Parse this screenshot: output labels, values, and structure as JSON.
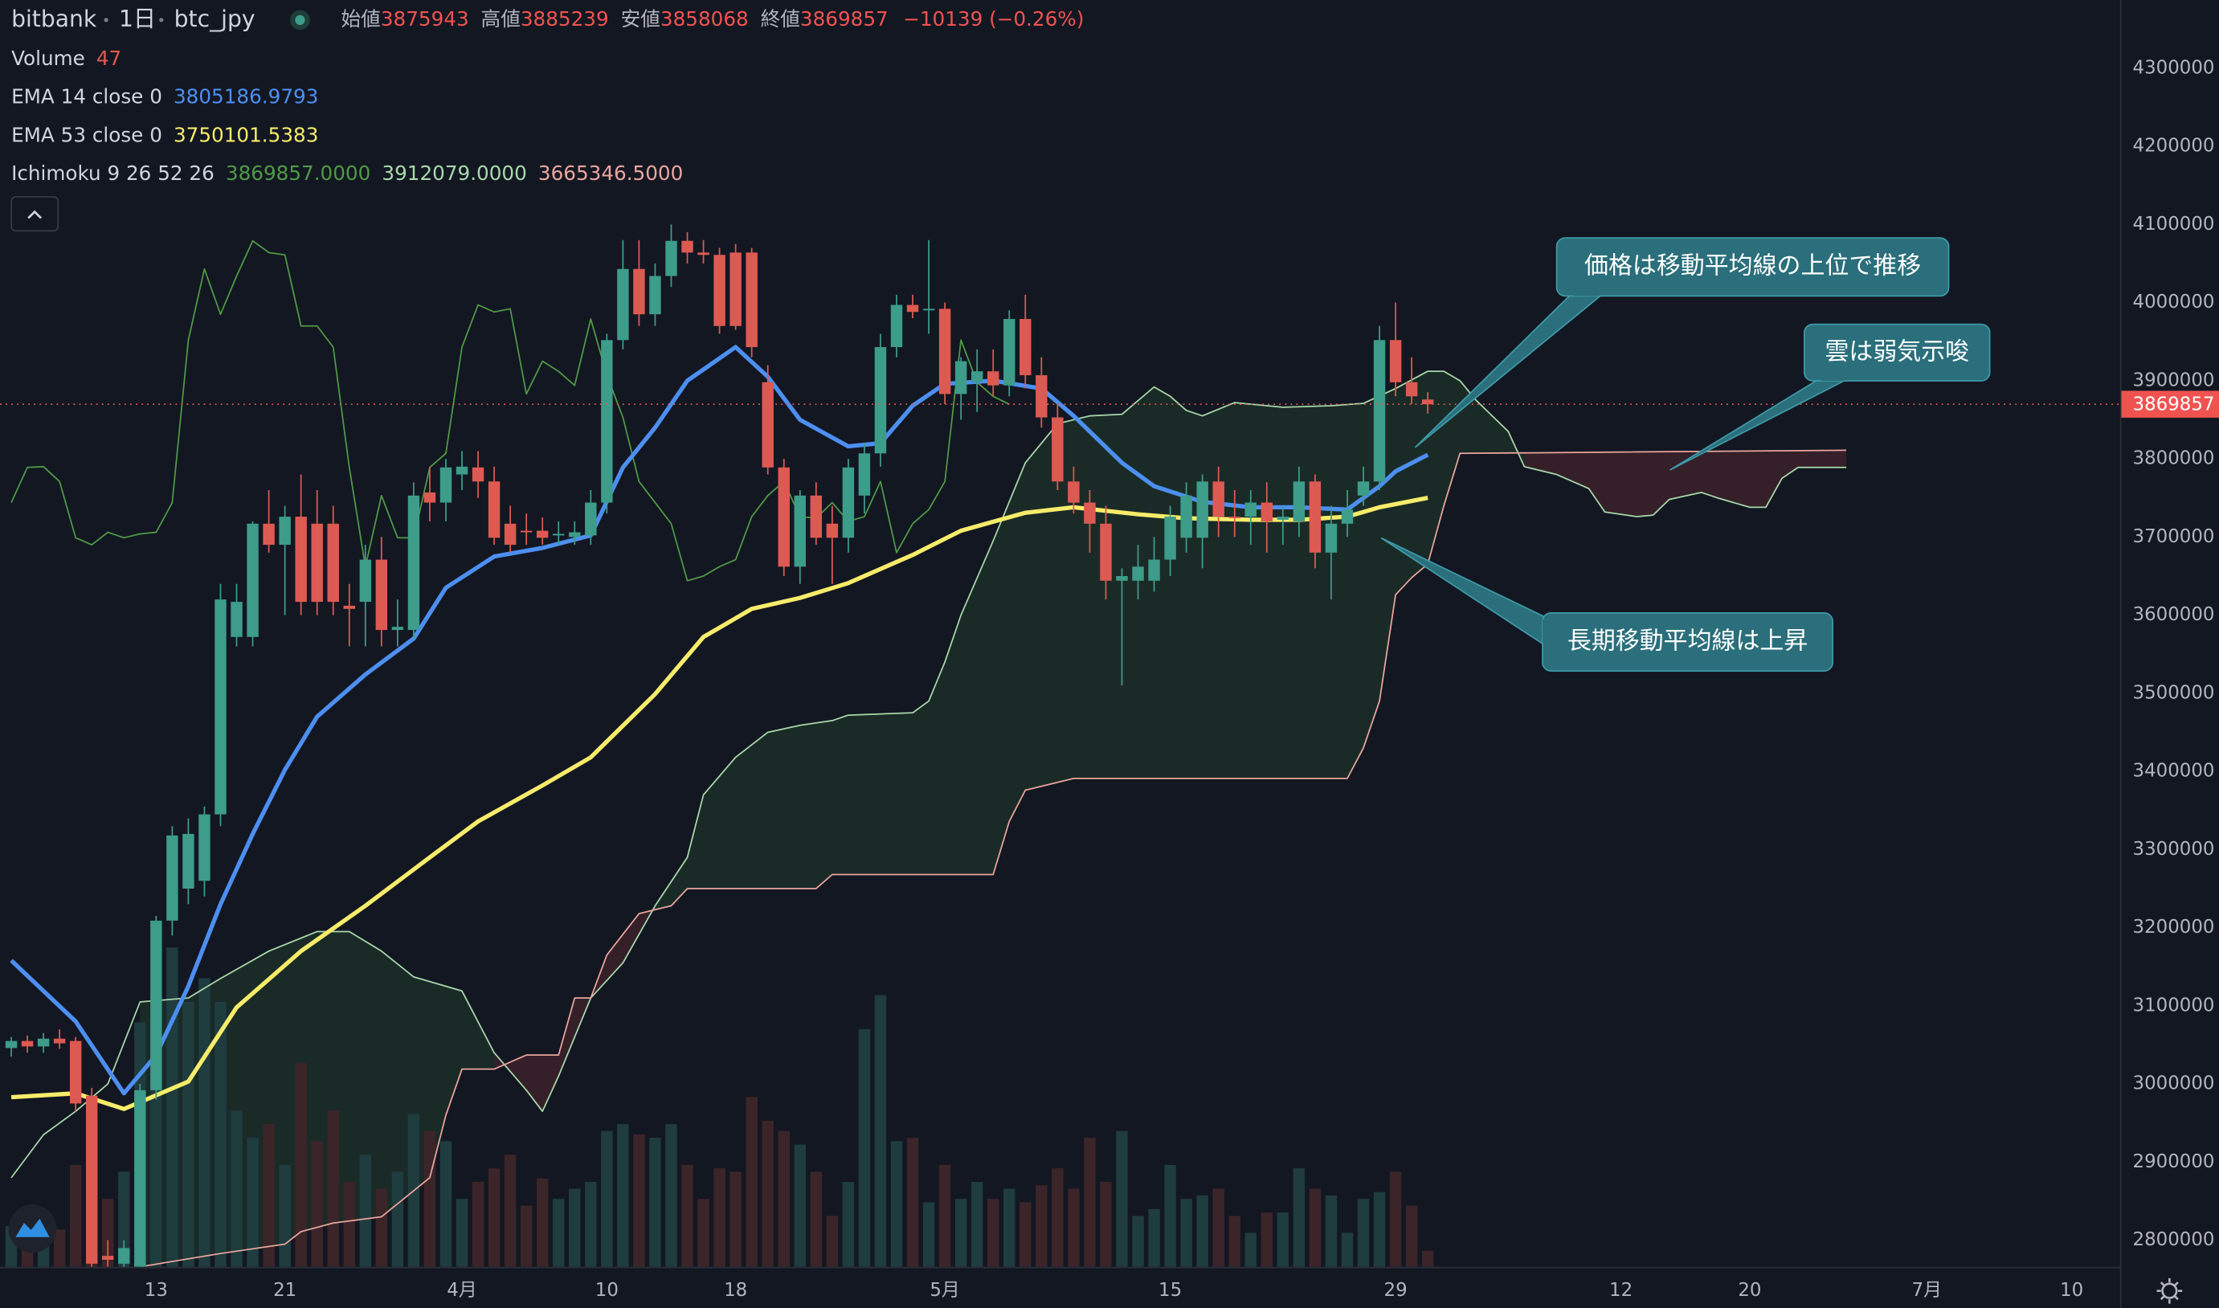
{
  "chart_data": {
    "type": "candlestick",
    "title": "bitbank",
    "interval": "1日",
    "symbol": "btc_jpy",
    "ohlc_labels": [
      "始値",
      "高値",
      "安値",
      "終値"
    ],
    "change": "−10139 (−0.26%)",
    "xlim": [
      -0.7,
      131
    ],
    "xticks": [
      {
        "value": 9,
        "label": "13"
      },
      {
        "value": 17,
        "label": "21"
      },
      {
        "value": 28,
        "label": "4月"
      },
      {
        "value": 37,
        "label": "10"
      },
      {
        "value": 45,
        "label": "18"
      },
      {
        "value": 58,
        "label": "5月"
      },
      {
        "value": 72,
        "label": "15"
      },
      {
        "value": 86,
        "label": "29"
      },
      {
        "value": 100,
        "label": "12"
      },
      {
        "value": 108,
        "label": "20"
      },
      {
        "value": 119,
        "label": "7月"
      },
      {
        "value": 128,
        "label": "10"
      }
    ],
    "ylim": [
      2766000,
      4387000
    ],
    "yticks": [
      2800000,
      2900000,
      3000000,
      3100000,
      3200000,
      3300000,
      3400000,
      3500000,
      3600000,
      3700000,
      3800000,
      3900000,
      4000000,
      4100000,
      4200000,
      4300000
    ],
    "grid": false,
    "candles": {
      "up_color": "#3d9c8a",
      "down_color": "#dd5a52",
      "open": [
        3046000,
        3055000,
        3048000,
        3058000,
        3055000,
        2985000,
        2780000,
        2770000,
        2766000,
        2992000,
        3209000,
        3250000,
        3260000,
        3345000,
        3572000,
        3572000,
        3717000,
        3690000,
        3726000,
        3717000,
        3717000,
        3612000,
        3617000,
        3671000,
        3581000,
        3581000,
        3757000,
        3744000,
        3780000,
        3789000,
        3771000,
        3717000,
        3708000,
        3708000,
        3702000,
        3700000,
        3702000,
        3744000,
        3952000,
        4043000,
        3985000,
        4034000,
        4079000,
        4064000,
        4061000,
        4064000,
        4064000,
        3898000,
        3789000,
        3662000,
        3753000,
        3717000,
        3699000,
        3753000,
        3807000,
        3943000,
        3997000,
        3990000,
        3992000,
        3883000,
        3898000,
        3912000,
        3894000,
        3979000,
        3907000,
        3853000,
        3771000,
        3744000,
        3717000,
        3644000,
        3644000,
        3644000,
        3671000,
        3699000,
        3699000,
        3771000,
        3726000,
        3726000,
        3744000,
        3722000,
        3720000,
        3771000,
        3680000,
        3717000,
        3753000,
        3771000,
        3952000,
        3898000,
        3875943
      ],
      "high": [
        3060000,
        3062000,
        3065000,
        3070000,
        3060000,
        2995000,
        2800000,
        2800000,
        3000000,
        3215000,
        3330000,
        3340000,
        3355000,
        3640000,
        3640000,
        3720000,
        3760000,
        3740000,
        3780000,
        3760000,
        3740000,
        3640000,
        3690000,
        3700000,
        3620000,
        3770000,
        3790000,
        3800000,
        3810000,
        3810000,
        3790000,
        3740000,
        3730000,
        3725000,
        3720000,
        3720000,
        3760000,
        3960000,
        4080000,
        4080000,
        4050000,
        4100000,
        4090000,
        4080000,
        4070000,
        4075000,
        4070000,
        3920000,
        3800000,
        3760000,
        3770000,
        3740000,
        3800000,
        3820000,
        3960000,
        4010000,
        4010000,
        4080000,
        4000000,
        3930000,
        3940000,
        3940000,
        3990000,
        4010000,
        3930000,
        3870000,
        3790000,
        3760000,
        3740000,
        3660000,
        3690000,
        3700000,
        3740000,
        3770000,
        3780000,
        3790000,
        3760000,
        3760000,
        3770000,
        3740000,
        3790000,
        3780000,
        3740000,
        3760000,
        3790000,
        3970000,
        4000000,
        3930000,
        3885239
      ],
      "low": [
        3035000,
        3040000,
        3040000,
        3045000,
        2965000,
        2760000,
        2760000,
        2755000,
        2760000,
        2980000,
        3190000,
        3230000,
        3240000,
        3330000,
        3560000,
        3560000,
        3680000,
        3600000,
        3600000,
        3600000,
        3600000,
        3560000,
        3560000,
        3560000,
        3560000,
        3570000,
        3720000,
        3720000,
        3760000,
        3750000,
        3690000,
        3680000,
        3690000,
        3690000,
        3690000,
        3690000,
        3690000,
        3730000,
        3940000,
        3970000,
        3970000,
        4020000,
        4050000,
        4050000,
        3960000,
        3965000,
        3930000,
        3780000,
        3650000,
        3640000,
        3690000,
        3640000,
        3680000,
        3730000,
        3790000,
        3930000,
        3980000,
        3960000,
        3870000,
        3850000,
        3860000,
        3880000,
        3880000,
        3890000,
        3840000,
        3760000,
        3730000,
        3680000,
        3620000,
        3510000,
        3620000,
        3630000,
        3650000,
        3680000,
        3660000,
        3700000,
        3700000,
        3690000,
        3680000,
        3690000,
        3700000,
        3660000,
        3620000,
        3700000,
        3740000,
        3760000,
        3880000,
        3870000,
        3858068
      ],
      "close": [
        3055000,
        3048000,
        3058000,
        3052000,
        2975000,
        2770000,
        2775000,
        2790000,
        2992000,
        3209000,
        3318000,
        3320000,
        3345000,
        3620000,
        3617000,
        3717000,
        3690000,
        3726000,
        3617000,
        3617000,
        3617000,
        3608000,
        3671000,
        3581000,
        3585000,
        3753000,
        3744000,
        3789000,
        3790000,
        3771000,
        3699000,
        3690000,
        3706000,
        3699000,
        3704000,
        3706000,
        3744000,
        3952000,
        4043000,
        3985000,
        4034000,
        4079000,
        4064000,
        4061000,
        3970000,
        3970000,
        3943000,
        3789000,
        3662000,
        3753000,
        3699000,
        3699000,
        3789000,
        3807000,
        3943000,
        3997000,
        3988000,
        3992000,
        3883000,
        3925000,
        3912000,
        3894000,
        3979000,
        3907000,
        3853000,
        3771000,
        3744000,
        3717000,
        3644000,
        3650000,
        3662000,
        3671000,
        3726000,
        3753000,
        3771000,
        3726000,
        3724000,
        3744000,
        3720000,
        3726000,
        3771000,
        3680000,
        3717000,
        3735000,
        3771000,
        3952000,
        3898000,
        3880000,
        3869857
      ]
    },
    "volume": {
      "name": "Volume",
      "up_color": "#1f3c3f",
      "down_color": "#3b2529",
      "vlim": [
        0,
        1000
      ],
      "values": [
        120,
        90,
        100,
        110,
        300,
        420,
        200,
        280,
        720,
        800,
        940,
        780,
        850,
        780,
        460,
        380,
        420,
        300,
        600,
        370,
        460,
        250,
        330,
        230,
        280,
        450,
        400,
        370,
        200,
        250,
        290,
        330,
        180,
        260,
        200,
        230,
        250,
        400,
        420,
        390,
        380,
        420,
        300,
        200,
        290,
        280,
        500,
        430,
        400,
        360,
        280,
        150,
        250,
        700,
        800,
        370,
        380,
        190,
        300,
        200,
        250,
        200,
        230,
        190,
        240,
        290,
        230,
        380,
        250,
        400,
        150,
        170,
        300,
        200,
        210,
        230,
        150,
        100,
        160,
        160,
        290,
        230,
        210,
        100,
        200,
        220,
        280,
        180,
        47
      ]
    },
    "series": [
      {
        "name": "EMA 14 close 0",
        "color": "#4c8ff0",
        "x": [
          0,
          4,
          7,
          9,
          11,
          13,
          15,
          17,
          19,
          22,
          25,
          27,
          30,
          33,
          36,
          38,
          40,
          42,
          45,
          47,
          49,
          52,
          54,
          56,
          58,
          61,
          64,
          66,
          69,
          71,
          74,
          77,
          80,
          83,
          85,
          86,
          88
        ],
        "values": [
          3158000,
          3080000,
          2988000,
          3037000,
          3125000,
          3230000,
          3320000,
          3402000,
          3470000,
          3524000,
          3570000,
          3635000,
          3675000,
          3686000,
          3702000,
          3789000,
          3840000,
          3900000,
          3943000,
          3905000,
          3850000,
          3816000,
          3820000,
          3868000,
          3896000,
          3900000,
          3890000,
          3855000,
          3795000,
          3765000,
          3745000,
          3738000,
          3738000,
          3735000,
          3765000,
          3784000,
          3805186.9793
        ]
      },
      {
        "name": "EMA 53 close 0",
        "color": "#f6ec6a",
        "x": [
          0,
          4,
          7,
          11,
          14,
          18,
          22,
          26,
          29,
          33,
          36,
          40,
          43,
          46,
          49,
          52,
          56,
          59,
          63,
          66,
          70,
          73,
          77,
          80,
          83,
          85,
          88
        ],
        "values": [
          2983000,
          2988000,
          2968000,
          3003000,
          3098000,
          3170000,
          3228000,
          3290000,
          3336000,
          3382000,
          3418000,
          3499000,
          3572000,
          3608000,
          3622000,
          3641000,
          3677000,
          3708000,
          3731000,
          3738000,
          3729000,
          3724000,
          3722000,
          3722000,
          3726000,
          3738000,
          3750101.5383
        ]
      }
    ],
    "ichimoku": {
      "name": "Ichimoku 9 26 52 26",
      "cloud_up_color": "rgba(76,175,80,0.13)",
      "cloud_down_color": "rgba(239,83,80,0.16)",
      "lines": [
        {
          "label": "3869857.0000",
          "color": "#4f9a45",
          "x": [
            0,
            1,
            2,
            3,
            4,
            5,
            6,
            7,
            8,
            9,
            10,
            11,
            12,
            13,
            14,
            15,
            16,
            17,
            18,
            19,
            20,
            21,
            22,
            23,
            24,
            25,
            26,
            27,
            28,
            29,
            30,
            31,
            32,
            33,
            34,
            35,
            36,
            37,
            38,
            39,
            40,
            41,
            42,
            43,
            44,
            45,
            46,
            47,
            48,
            49,
            50,
            51,
            52,
            53,
            54,
            55,
            56,
            57,
            58,
            59,
            60,
            61,
            62
          ],
          "values": [
            3744000,
            3789000,
            3790000,
            3771000,
            3699000,
            3690000,
            3706000,
            3699000,
            3704000,
            3706000,
            3744000,
            3952000,
            4043000,
            3985000,
            4034000,
            4079000,
            4064000,
            4061000,
            3970000,
            3970000,
            3943000,
            3789000,
            3662000,
            3753000,
            3699000,
            3699000,
            3789000,
            3807000,
            3943000,
            3997000,
            3988000,
            3992000,
            3883000,
            3925000,
            3912000,
            3894000,
            3979000,
            3907000,
            3853000,
            3771000,
            3744000,
            3717000,
            3644000,
            3650000,
            3662000,
            3671000,
            3726000,
            3753000,
            3771000,
            3726000,
            3724000,
            3744000,
            3720000,
            3726000,
            3771000,
            3680000,
            3717000,
            3735000,
            3771000,
            3952000,
            3898000,
            3880000,
            3869857
          ]
        },
        {
          "label": "3912079.0000",
          "color": "#a8d8aa",
          "x": [
            0,
            2,
            4,
            6,
            8,
            11,
            13,
            16,
            19,
            21,
            23,
            25,
            28,
            30,
            32,
            33,
            34,
            36,
            38,
            40,
            42,
            43,
            45,
            47,
            49,
            51,
            52,
            56,
            57,
            58,
            59,
            61,
            63,
            65,
            67,
            69,
            71,
            72,
            73,
            74,
            76,
            79,
            82,
            84,
            86,
            88,
            89,
            90,
            91,
            93,
            94,
            96,
            98,
            99,
            101,
            102,
            103,
            105,
            106,
            108,
            109,
            110,
            111,
            114
          ],
          "values": [
            2880000,
            2935000,
            2965000,
            3000000,
            3105000,
            3110000,
            3135000,
            3170000,
            3195000,
            3195000,
            3170000,
            3137000,
            3119000,
            3040000,
            2992000,
            2965000,
            3010000,
            3110000,
            3155000,
            3228000,
            3290000,
            3370000,
            3418000,
            3450000,
            3459000,
            3465000,
            3472000,
            3475000,
            3490000,
            3540000,
            3600000,
            3695000,
            3795000,
            3845000,
            3855000,
            3857000,
            3892000,
            3880000,
            3862000,
            3855000,
            3872000,
            3866000,
            3868000,
            3871000,
            3890000,
            3912079,
            3912000,
            3900000,
            3875000,
            3835000,
            3790000,
            3780000,
            3762000,
            3732000,
            3726000,
            3728000,
            3748000,
            3757000,
            3750000,
            3738000,
            3738000,
            3775000,
            3789000,
            3789000
          ]
        },
        {
          "label": "3665346.5000",
          "color": "#eaa59d",
          "x": [
            8,
            13,
            17,
            18,
            20,
            23,
            26,
            27,
            28,
            30,
            32,
            34,
            35,
            36,
            37,
            39,
            41,
            42,
            50,
            51,
            61,
            62,
            63,
            66,
            83,
            84,
            85,
            86,
            87,
            88,
            89,
            90,
            114
          ],
          "values": [
            2766000,
            2783000,
            2795000,
            2811000,
            2822000,
            2830000,
            2880000,
            2960000,
            3019000,
            3019000,
            3037000,
            3037000,
            3110000,
            3110000,
            3165000,
            3218000,
            3228000,
            3250000,
            3250000,
            3268000,
            3268000,
            3336000,
            3376000,
            3391000,
            3391000,
            3430000,
            3490000,
            3626000,
            3648000,
            3665346.5,
            3740000,
            3807000,
            3811000
          ]
        }
      ]
    },
    "annotations": [
      "価格は移動平均線の上位で推移",
      "雲は弱気示唆",
      "長期移動平均線は上昇"
    ]
  }
}
